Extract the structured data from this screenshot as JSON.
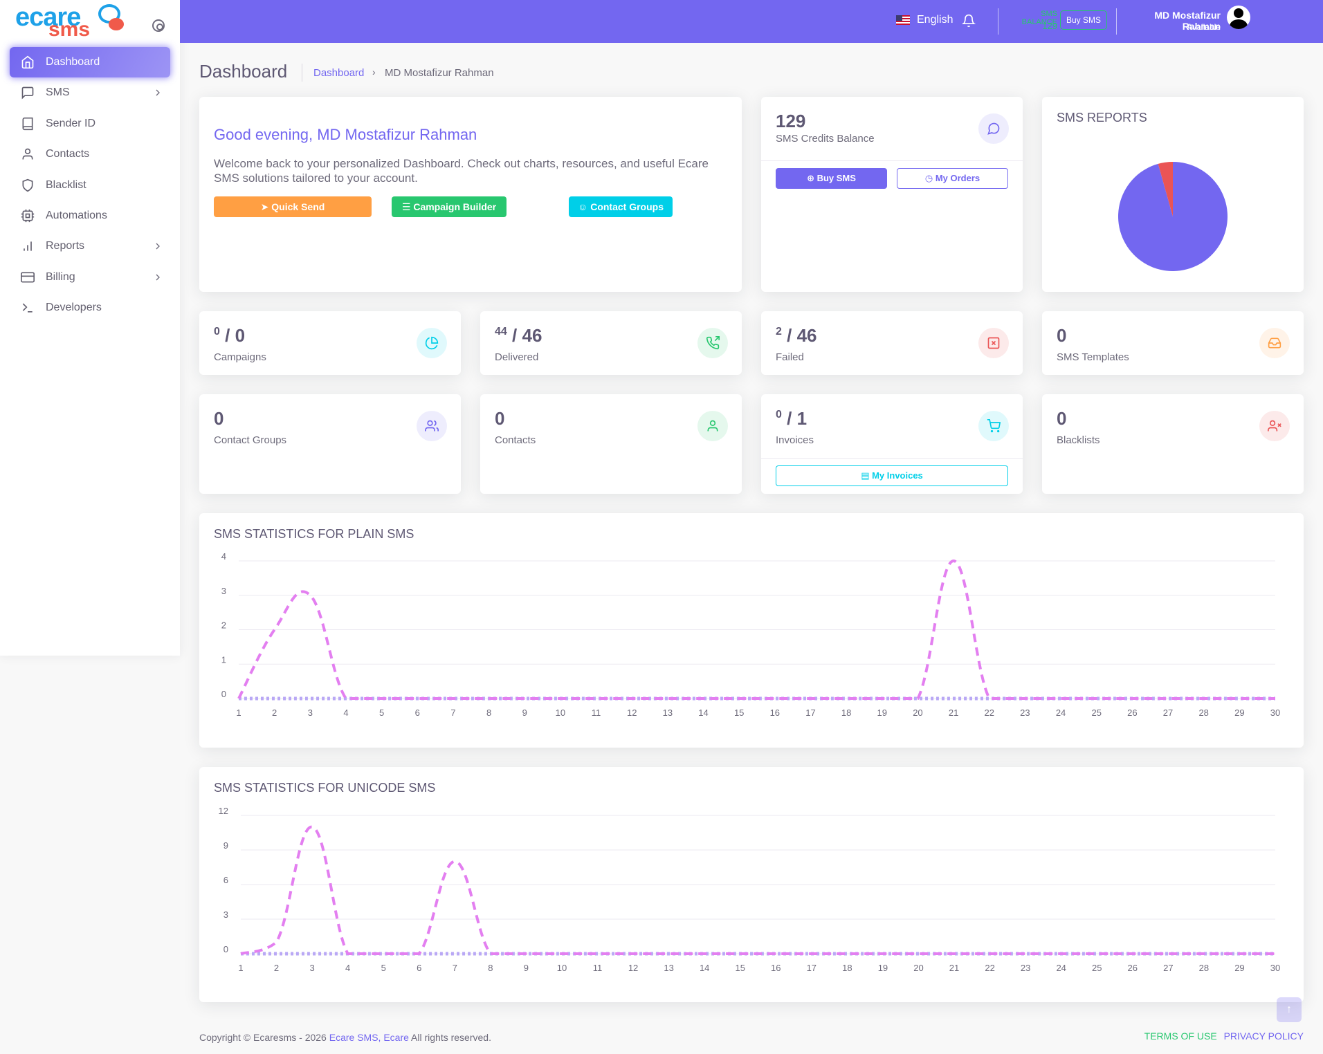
{
  "brand": {
    "logo_ecare": "ecare",
    "logo_sms": "sms"
  },
  "sidebar": {
    "items": [
      {
        "label": "Dashboard",
        "icon": "home-icon",
        "active": true
      },
      {
        "label": "SMS",
        "icon": "message-square-icon",
        "has_children": true
      },
      {
        "label": "Sender ID",
        "icon": "book-icon"
      },
      {
        "label": "Contacts",
        "icon": "user-icon"
      },
      {
        "label": "Blacklist",
        "icon": "shield-icon"
      },
      {
        "label": "Automations",
        "icon": "cpu-icon"
      },
      {
        "label": "Reports",
        "icon": "bar-chart-icon",
        "has_children": true
      },
      {
        "label": "Billing",
        "icon": "credit-card-icon",
        "has_children": true
      },
      {
        "label": "Developers",
        "icon": "terminal-icon"
      }
    ]
  },
  "header": {
    "language": "English",
    "balance_label": "SMS BALANCE",
    "balance_value": "129",
    "buy_label": "Buy SMS",
    "user_name": "MD Mostafizur Rahman",
    "user_status": "Available"
  },
  "page": {
    "title": "Dashboard",
    "breadcrumb_link": "Dashboard",
    "breadcrumb_current": "MD Mostafizur Rahman"
  },
  "greeting": {
    "title": "Good evening, MD Mostafizur Rahman",
    "text": "Welcome back to your personalized Dashboard. Check out charts, resources, and useful Ecare SMS solutions tailored to your account.",
    "quick_send": "Quick Send",
    "campaign_builder": "Campaign Builder",
    "contact_groups": "Contact Groups"
  },
  "credits": {
    "value": "129",
    "label": "SMS Credits Balance",
    "buy_label": "Buy SMS",
    "orders_label": "My Orders"
  },
  "reports": {
    "title": "SMS REPORTS",
    "slices": [
      {
        "name": "Delivered",
        "value": 44,
        "color": "#7367f0"
      },
      {
        "name": "Failed",
        "value": 2,
        "color": "#ea5455"
      }
    ]
  },
  "stats": {
    "campaigns": {
      "sup": "0",
      "value": "/ 0",
      "label": "Campaigns"
    },
    "delivered": {
      "sup": "44",
      "value": "/ 46",
      "label": "Delivered"
    },
    "failed": {
      "sup": "2",
      "value": "/ 46",
      "label": "Failed"
    },
    "templates": {
      "value": "0",
      "label": "SMS Templates"
    },
    "contact_groups": {
      "value": "0",
      "label": "Contact Groups"
    },
    "contacts": {
      "value": "0",
      "label": "Contacts"
    },
    "invoices": {
      "sup": "0",
      "value": "/ 1",
      "label": "Invoices",
      "button": "My Invoices"
    },
    "blacklists": {
      "value": "0",
      "label": "Blacklists"
    }
  },
  "chart_plain_title": "SMS STATISTICS FOR PLAIN SMS",
  "chart_unicode_title": "SMS STATISTICS FOR UNICODE SMS",
  "chart_data": [
    {
      "type": "line",
      "title": "SMS STATISTICS FOR PLAIN SMS",
      "x": [
        1,
        2,
        3,
        4,
        5,
        6,
        7,
        8,
        9,
        10,
        11,
        12,
        13,
        14,
        15,
        16,
        17,
        18,
        19,
        20,
        21,
        22,
        23,
        24,
        25,
        26,
        27,
        28,
        29,
        30
      ],
      "ylim": [
        0,
        4
      ],
      "yticks": [
        0,
        1,
        2,
        3,
        4
      ],
      "grid": true,
      "series": [
        {
          "color": "#e37ff0",
          "values": [
            0,
            2,
            3,
            0,
            0,
            0,
            0,
            0,
            0,
            0,
            0,
            0,
            0,
            0,
            0,
            0,
            0,
            0,
            0,
            0,
            4,
            0,
            0,
            0,
            0,
            0,
            0,
            0,
            0,
            0
          ]
        },
        {
          "color": "#b9a8f5",
          "values": [
            0,
            0,
            0,
            0,
            0,
            0,
            0,
            0,
            0,
            0,
            0,
            0,
            0,
            0,
            0,
            0,
            0,
            0,
            0,
            0,
            0,
            0,
            0,
            0,
            0,
            0,
            0,
            0,
            0,
            0
          ]
        }
      ]
    },
    {
      "type": "line",
      "title": "SMS STATISTICS FOR UNICODE SMS",
      "x": [
        1,
        2,
        3,
        4,
        5,
        6,
        7,
        8,
        9,
        10,
        11,
        12,
        13,
        14,
        15,
        16,
        17,
        18,
        19,
        20,
        21,
        22,
        23,
        24,
        25,
        26,
        27,
        28,
        29,
        30
      ],
      "ylim": [
        0,
        12
      ],
      "yticks": [
        0,
        3,
        6,
        9,
        12
      ],
      "grid": true,
      "series": [
        {
          "color": "#e37ff0",
          "values": [
            0,
            1,
            11,
            0,
            0,
            0,
            8,
            0,
            0,
            0,
            0,
            0,
            0,
            0,
            0,
            0,
            0,
            0,
            0,
            0,
            0,
            0,
            0,
            0,
            0,
            0,
            0,
            0,
            0,
            0
          ]
        },
        {
          "color": "#b9a8f5",
          "values": [
            0,
            0,
            0,
            0,
            0,
            0,
            0,
            0,
            0,
            0,
            0,
            0,
            0,
            0,
            0,
            0,
            0,
            0,
            0,
            0,
            0,
            0,
            0,
            0,
            0,
            0,
            0,
            0,
            0,
            0
          ]
        }
      ]
    }
  ],
  "footer": {
    "copyright": "Copyright © Ecaresms - 2026",
    "link1": "Ecare SMS,",
    "link2": "Ecare",
    "rights": "All rights reserved.",
    "terms": "TERMS OF USE",
    "privacy": "PRIVACY POLICY"
  }
}
